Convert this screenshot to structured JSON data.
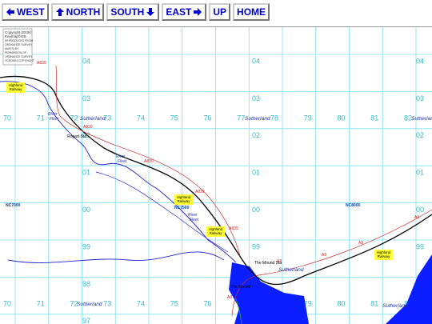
{
  "nav": [
    "WEST",
    "NORTH",
    "SOUTH",
    "EAST",
    "UP",
    "HOME"
  ],
  "copyright": [
    "Copyright 2019©",
    "Keymap©GB",
    "REPRODUCED FROM",
    "ORDNANCE SURVEY",
    "MAP(S) BY",
    "PERMISSION OF",
    "ORDNANCE SURVEY",
    "©CROWN COPYRIGHT"
  ],
  "grid": {
    "eastings": [
      "70",
      "71",
      "72",
      "73",
      "74",
      "75",
      "76",
      "77",
      "78",
      "79",
      "80",
      "81",
      "82"
    ],
    "northings": [
      "04",
      "03",
      "02",
      "01",
      "00",
      "99",
      "98",
      "97"
    ]
  },
  "squares": [
    "NC7000",
    "NC7500",
    "NC8000"
  ],
  "roads": [
    "A839",
    "A839",
    "A839",
    "A839",
    "A839",
    "A9",
    "A9",
    "A9",
    "A9",
    "A9"
  ],
  "railway": [
    [
      "Highland",
      "Railway"
    ],
    [
      "Highland",
      "Railway"
    ],
    [
      "Highland",
      "Railway"
    ],
    [
      "Highland",
      "Railway"
    ]
  ],
  "rivers": [
    [
      "River",
      "Fleet"
    ],
    [
      "River",
      "Fleet"
    ],
    [
      "River",
      "Fleet"
    ]
  ],
  "places": [
    "Rogart Sta",
    "The Mound Sta",
    "The Mound"
  ],
  "districts": [
    "Sutherland",
    "Sutherland",
    "Sutherland",
    "Sutherland",
    "Sutherland",
    "Sutherland"
  ]
}
